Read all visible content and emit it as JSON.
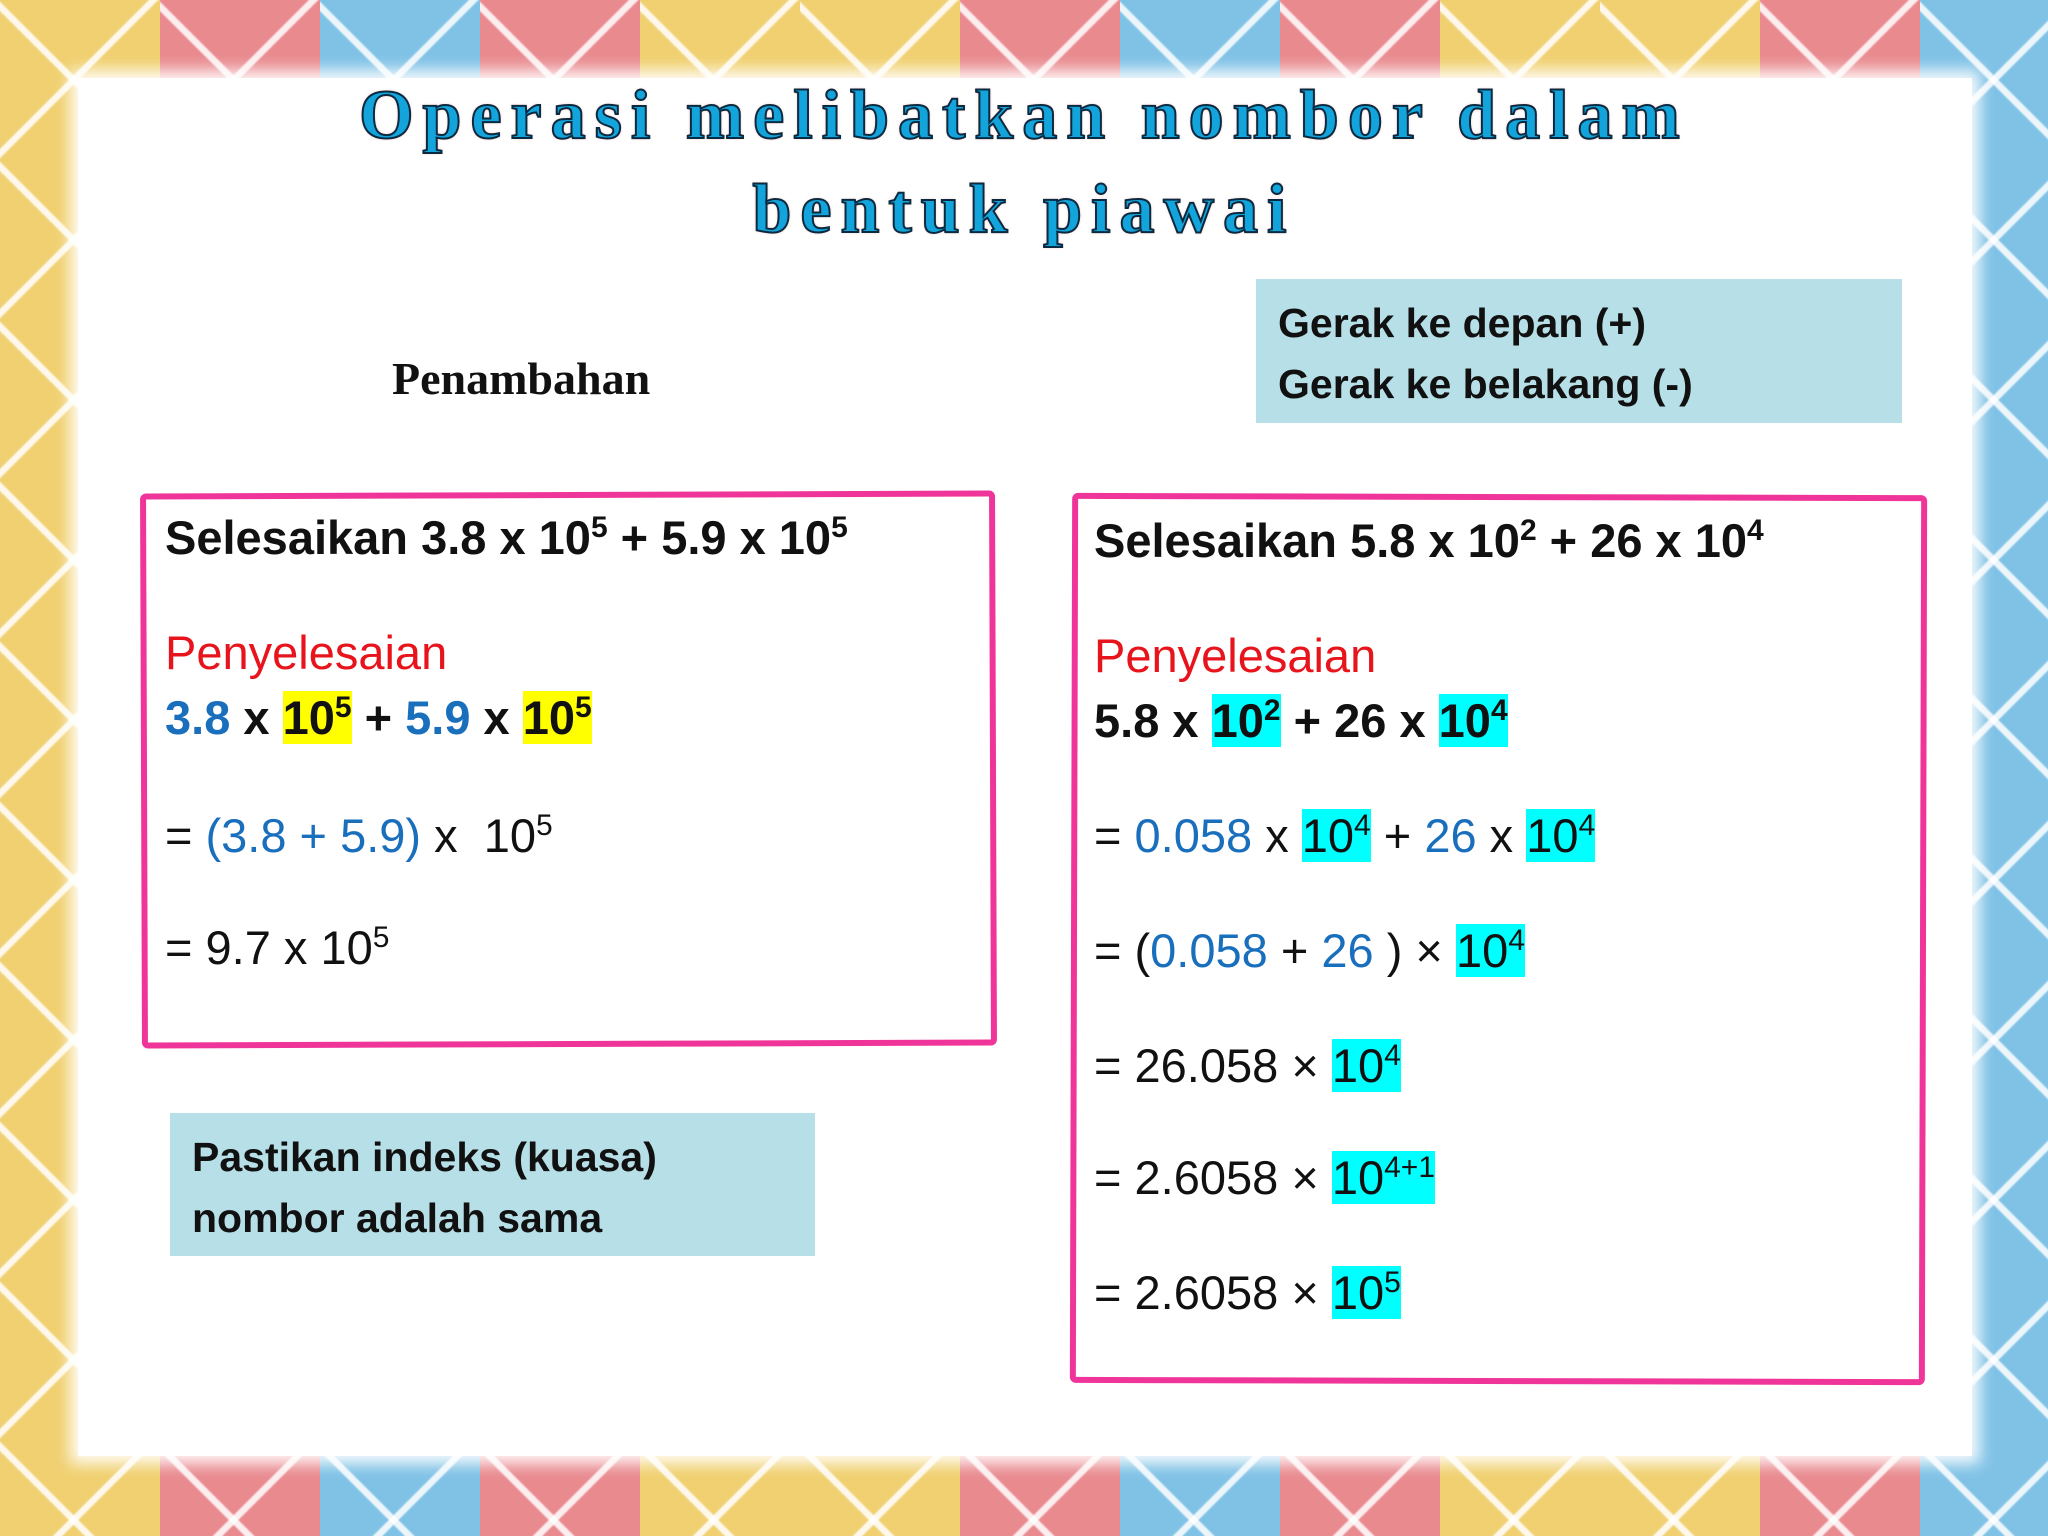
{
  "title": {
    "line1": "Operasi melibatkan nombor dalam",
    "line2": "bentuk piawai"
  },
  "colors": {
    "blue": "#1a6fbd",
    "red": "#e8141c",
    "black": "#111111",
    "yellow": "#ffff00",
    "cyan": "#00ffff",
    "frame": "#f0359a",
    "note_bg": "#b7dfe7"
  },
  "section_label": "Penambahan",
  "note_top": {
    "line1": "Gerak ke depan (+)",
    "line2": "Gerak ke belakang (-)"
  },
  "note_bottom": {
    "line1": "Pastikan indeks (kuasa)",
    "line2": "nombor adalah sama"
  },
  "left": [
    {
      "bold": true,
      "segs": [
        {
          "t": "Selesaikan 3.8 x 10",
          "sup": "5"
        },
        {
          "t": " + 5.9 x 10",
          "sup": "5"
        }
      ]
    },
    {
      "segs": [
        {
          "t": "Penyelesaian",
          "c": "red"
        }
      ]
    },
    {
      "bold": true,
      "segs": [
        {
          "t": "3.8",
          "c": "blue"
        },
        {
          "t": " x "
        },
        {
          "t": "10",
          "sup": "5",
          "hl": "yellow"
        },
        {
          "t": " + "
        },
        {
          "t": "5.9",
          "c": "blue"
        },
        {
          "t": " x "
        },
        {
          "t": "10",
          "sup": "5",
          "hl": "yellow"
        }
      ]
    },
    {
      "segs": [
        {
          "t": "= "
        },
        {
          "t": "(3.8 + 5.9)",
          "c": "blue"
        },
        {
          "t": " x  10",
          "sup": "5"
        }
      ]
    },
    {
      "segs": [
        {
          "t": "= 9.7 x 10",
          "sup": "5"
        }
      ]
    }
  ],
  "right": [
    {
      "bold": true,
      "segs": [
        {
          "t": "Selesaikan 5.8 x 10",
          "sup": "2"
        },
        {
          "t": " + 26 x 10",
          "sup": "4"
        }
      ]
    },
    {
      "segs": [
        {
          "t": "Penyelesaian",
          "c": "red"
        }
      ]
    },
    {
      "bold": true,
      "segs": [
        {
          "t": "5.8 x "
        },
        {
          "t": "10",
          "sup": "2",
          "hl": "cyan"
        },
        {
          "t": " + 26 x "
        },
        {
          "t": "10",
          "sup": "4",
          "hl": "cyan"
        }
      ]
    },
    {
      "segs": [
        {
          "t": "= "
        },
        {
          "t": "0.058",
          "c": "blue"
        },
        {
          "t": " x "
        },
        {
          "t": "10",
          "sup": "4",
          "hl": "cyan"
        },
        {
          "t": " + "
        },
        {
          "t": "26",
          "c": "blue"
        },
        {
          "t": " x "
        },
        {
          "t": "10",
          "sup": "4",
          "hl": "cyan"
        }
      ]
    },
    {
      "segs": [
        {
          "t": "= ("
        },
        {
          "t": "0.058",
          "c": "blue"
        },
        {
          "t": " + "
        },
        {
          "t": "26",
          "c": "blue"
        },
        {
          "t": " ) × "
        },
        {
          "t": "10",
          "sup": "4",
          "hl": "cyan"
        }
      ]
    },
    {
      "segs": [
        {
          "t": "= 26.058 × "
        },
        {
          "t": "10",
          "sup": "4",
          "hl": "cyan"
        }
      ]
    },
    {
      "segs": [
        {
          "t": "= 2.6058 × "
        },
        {
          "t": "10",
          "sup": "4+1",
          "hl": "cyan"
        }
      ]
    },
    {
      "segs": [
        {
          "t": "= 2.6058 × "
        },
        {
          "t": "10",
          "sup": "5",
          "hl": "cyan"
        }
      ]
    }
  ]
}
